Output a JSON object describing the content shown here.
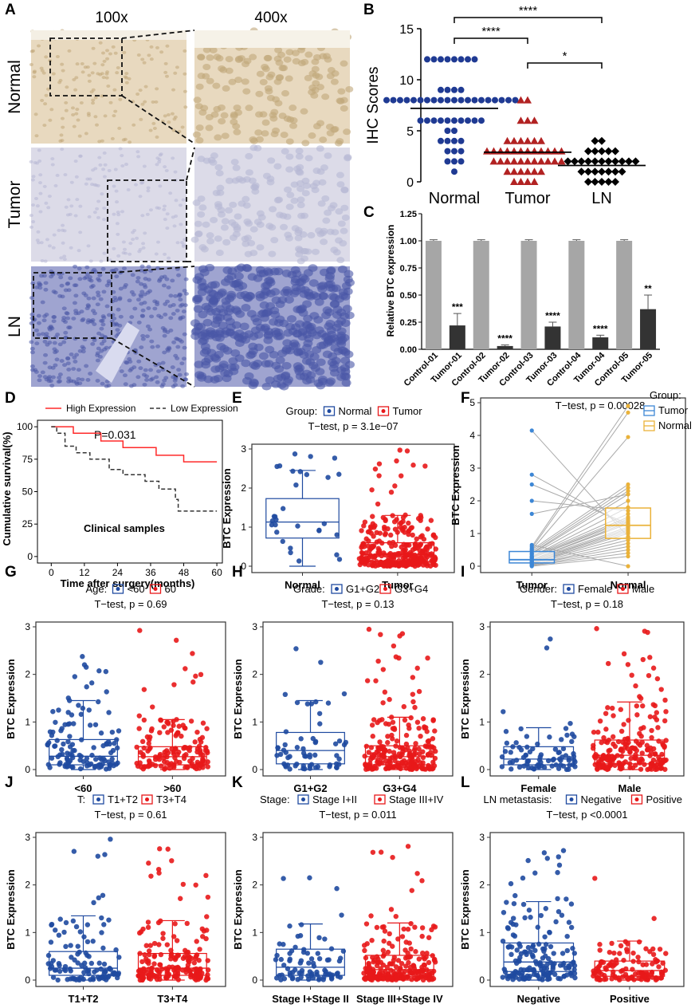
{
  "panel_letters": [
    "A",
    "B",
    "C",
    "D",
    "E",
    "F",
    "G",
    "H",
    "I",
    "J",
    "K",
    "L"
  ],
  "panelA": {
    "col_headers": [
      "100x",
      "400x"
    ],
    "rows": [
      {
        "label": "Normal",
        "fill": "#e8d9bf",
        "dark": "#c0a679"
      },
      {
        "label": "Tumor",
        "fill": "#dcdbe8",
        "dark": "#b6b7d3"
      },
      {
        "label": "LN",
        "fill": "#9fa4d0",
        "dark": "#4a57a6"
      }
    ]
  },
  "chart_data": [
    {
      "id": "B",
      "type": "scatter",
      "ylabel": "IHC Scores",
      "ylim": [
        0,
        15
      ],
      "yticks": [
        0,
        5,
        10,
        15
      ],
      "categories": [
        "Normal",
        "Tumor",
        "LN"
      ],
      "colors": [
        "#1f3a93",
        "#b22222",
        "#000000"
      ],
      "markers": [
        "circle",
        "triangle",
        "diamond"
      ],
      "points": [
        [
          12,
          12,
          12,
          12,
          12,
          12,
          12,
          12,
          9,
          9,
          9,
          9,
          8,
          8,
          8,
          8,
          8,
          8,
          8,
          8,
          8,
          8,
          8,
          8,
          8,
          8,
          8,
          8,
          8,
          8,
          8,
          8,
          6,
          6,
          6,
          6,
          6,
          6,
          6,
          6,
          6,
          6,
          5,
          5,
          4,
          4,
          4,
          4,
          3,
          3,
          3,
          2,
          2,
          2,
          1
        ],
        [
          8,
          8,
          6,
          6,
          6,
          4,
          4,
          4,
          4,
          4,
          4,
          3,
          3,
          3,
          3,
          3,
          3,
          3,
          3,
          3,
          3,
          3,
          3,
          2,
          2,
          2,
          2,
          2,
          2,
          2,
          2,
          2,
          2,
          2,
          1,
          1,
          1,
          1,
          1,
          1,
          0,
          0,
          0,
          0
        ],
        [
          4,
          4,
          3,
          3,
          3,
          3,
          3,
          2,
          2,
          2,
          2,
          2,
          2,
          2,
          2,
          2,
          2,
          2,
          1,
          1,
          1,
          1,
          1,
          1,
          1,
          0,
          0,
          0,
          0,
          0
        ]
      ],
      "means": [
        7.2,
        2.9,
        1.6
      ],
      "comparisons": [
        {
          "from": "Normal",
          "to": "Tumor",
          "label": "****"
        },
        {
          "from": "Normal",
          "to": "LN",
          "label": "****"
        },
        {
          "from": "Tumor",
          "to": "LN",
          "label": "*"
        }
      ]
    },
    {
      "id": "C",
      "type": "bar",
      "ylabel": "Relative BTC expression",
      "ylim": [
        0,
        1.25
      ],
      "yticks": [
        "0.00",
        "0.25",
        "0.50",
        "0.75",
        "1.00",
        "1.25"
      ],
      "categories": [
        "Control-01",
        "Tumor-01",
        "Control-02",
        "Tumor-02",
        "Control-03",
        "Tumor-03",
        "Control-04",
        "Tumor-04",
        "Control-05",
        "Tumor-05"
      ],
      "values": [
        1.0,
        0.22,
        1.0,
        0.03,
        1.0,
        0.21,
        1.0,
        0.11,
        1.0,
        0.37
      ],
      "errors": [
        0.01,
        0.11,
        0.01,
        0.01,
        0.01,
        0.04,
        0.01,
        0.02,
        0.01,
        0.13
      ],
      "significance": [
        "",
        "***",
        "",
        "****",
        "",
        "****",
        "",
        "****",
        "",
        "**"
      ],
      "colors": {
        "control": "#a6a6a6",
        "tumor": "#333333"
      }
    },
    {
      "id": "D",
      "type": "line",
      "title": "",
      "xlabel": "Time after surgery(months)",
      "ylabel": "Cumulative survival(%)",
      "xlim": [
        -5,
        62
      ],
      "ylim": [
        -5,
        105
      ],
      "xticks": [
        0,
        12,
        24,
        36,
        48,
        60
      ],
      "yticks": [
        0,
        25,
        50,
        75,
        100
      ],
      "annotation": "P=0.031",
      "note": "Clinical samples",
      "series": [
        {
          "name": "High Expression",
          "color": "#ff2a2a",
          "dash": "",
          "steps": [
            [
              0,
              100
            ],
            [
              8,
              100
            ],
            [
              8,
              95
            ],
            [
              18,
              95
            ],
            [
              18,
              89
            ],
            [
              26,
              89
            ],
            [
              26,
              84
            ],
            [
              38,
              84
            ],
            [
              38,
              78
            ],
            [
              48,
              78
            ],
            [
              48,
              73
            ],
            [
              60,
              73
            ]
          ]
        },
        {
          "name": "Low Expression",
          "color": "#333333",
          "dash": "5,3",
          "steps": [
            [
              0,
              100
            ],
            [
              2,
              100
            ],
            [
              2,
              95
            ],
            [
              5,
              95
            ],
            [
              5,
              85
            ],
            [
              9,
              85
            ],
            [
              9,
              80
            ],
            [
              14,
              80
            ],
            [
              14,
              75
            ],
            [
              21,
              75
            ],
            [
              21,
              67
            ],
            [
              26,
              67
            ],
            [
              26,
              63
            ],
            [
              34,
              63
            ],
            [
              34,
              58
            ],
            [
              39,
              58
            ],
            [
              39,
              52
            ],
            [
              45,
              52
            ],
            [
              45,
              44
            ],
            [
              46,
              44
            ],
            [
              46,
              35
            ],
            [
              60,
              35
            ]
          ]
        }
      ]
    },
    {
      "id": "E",
      "type": "boxplot",
      "legend_title": "Group:",
      "legend": [
        "Normal",
        "Tumor"
      ],
      "ttest": "T−test, p = 3.1e−07",
      "ylabel": "BTC Expression",
      "ylim": [
        0,
        3
      ],
      "yticks": [
        0,
        1,
        2,
        3
      ],
      "categories": [
        "Normal",
        "Tumor"
      ],
      "colors": [
        "#1f4aa0",
        "#e8181a"
      ],
      "boxes": [
        {
          "q1": 0.72,
          "median": 1.13,
          "q3": 1.73,
          "wlo": 0.0,
          "whi": 2.45
        },
        {
          "q1": 0.12,
          "median": 0.3,
          "q3": 0.6,
          "wlo": 0.0,
          "whi": 1.3
        }
      ],
      "n": [
        30,
        300
      ],
      "seed": [
        11,
        12
      ]
    },
    {
      "id": "F",
      "type": "paired",
      "legend_title": "Group:",
      "legend": [
        "Tumor",
        "Normal"
      ],
      "ttest": "T−test, p = 0.00028",
      "ylabel": "BTC Expression",
      "ylim": [
        0,
        5
      ],
      "yticks": [
        0,
        1,
        2,
        3,
        4,
        5
      ],
      "categories": [
        "Tumor",
        "Normal"
      ],
      "colors": [
        "#3d87d6",
        "#eab23a"
      ],
      "boxes": [
        {
          "q1": 0.1,
          "median": 0.2,
          "q3": 0.45,
          "wlo": 0.0,
          "whi": 0.7
        },
        {
          "q1": 0.85,
          "median": 1.25,
          "q3": 1.78,
          "wlo": 0.4,
          "whi": 2.4
        }
      ],
      "pairs": [
        [
          4.15,
          0.9
        ],
        [
          2.8,
          1.2
        ],
        [
          2.5,
          1.3
        ],
        [
          2.0,
          1.7
        ],
        [
          1.6,
          2.2
        ],
        [
          0.65,
          0.0
        ],
        [
          0.6,
          4.9
        ],
        [
          0.55,
          4.7
        ],
        [
          0.5,
          3.95
        ],
        [
          0.5,
          2.5
        ],
        [
          0.45,
          2.4
        ],
        [
          0.4,
          2.3
        ],
        [
          0.38,
          2.2
        ],
        [
          0.35,
          2.0
        ],
        [
          0.3,
          1.8
        ],
        [
          0.3,
          1.6
        ],
        [
          0.28,
          1.5
        ],
        [
          0.25,
          1.45
        ],
        [
          0.25,
          1.4
        ],
        [
          0.2,
          1.35
        ],
        [
          0.2,
          1.3
        ],
        [
          0.18,
          1.2
        ],
        [
          0.15,
          1.15
        ],
        [
          0.15,
          1.1
        ],
        [
          0.12,
          1.05
        ],
        [
          0.1,
          1.0
        ],
        [
          0.1,
          0.9
        ],
        [
          0.08,
          0.8
        ],
        [
          0.05,
          0.7
        ],
        [
          0.05,
          0.6
        ],
        [
          0.03,
          0.5
        ],
        [
          0.02,
          0.4
        ],
        [
          0.0,
          0.3
        ]
      ]
    },
    {
      "id": "G",
      "type": "boxplot",
      "legend_title": "Age:",
      "legend": [
        "<60",
        "60"
      ],
      "ttest": "T−test, p = 0.69",
      "ylabel": "BTC Expression",
      "ylim": [
        0,
        3
      ],
      "yticks": [
        0,
        1,
        2,
        3
      ],
      "categories": [
        "<60",
        ">60"
      ],
      "colors": [
        "#1f4aa0",
        "#e8181a"
      ],
      "boxes": [
        {
          "q1": 0.1,
          "median": 0.28,
          "q3": 0.63,
          "wlo": 0.0,
          "whi": 1.45
        },
        {
          "q1": 0.1,
          "median": 0.27,
          "q3": 0.48,
          "wlo": 0.0,
          "whi": 1.05
        }
      ],
      "n": [
        120,
        150
      ],
      "seed": [
        21,
        22
      ]
    },
    {
      "id": "H",
      "type": "boxplot",
      "legend_title": "Grade:",
      "legend": [
        "G1+G2",
        "G3+G4"
      ],
      "ttest": "T−test, p = 0.13",
      "ylabel": "BTC Expression",
      "ylim": [
        0,
        3
      ],
      "yticks": [
        0,
        1,
        2,
        3
      ],
      "categories": [
        "G1+G2",
        "G3+G4"
      ],
      "colors": [
        "#1f4aa0",
        "#e8181a"
      ],
      "boxes": [
        {
          "q1": 0.12,
          "median": 0.4,
          "q3": 0.78,
          "wlo": 0.0,
          "whi": 1.45
        },
        {
          "q1": 0.1,
          "median": 0.27,
          "q3": 0.5,
          "wlo": 0.0,
          "whi": 1.1
        }
      ],
      "n": [
        60,
        220
      ],
      "seed": [
        31,
        32
      ]
    },
    {
      "id": "I",
      "type": "boxplot",
      "legend_title": "Gender:",
      "legend": [
        "Female",
        "Male"
      ],
      "ttest": "T−test, p = 0.18",
      "ylabel": "BTC Expression",
      "ylim": [
        0,
        3
      ],
      "yticks": [
        0,
        1,
        2,
        3
      ],
      "categories": [
        "Female",
        "Male"
      ],
      "colors": [
        "#1f4aa0",
        "#e8181a"
      ],
      "boxes": [
        {
          "q1": 0.1,
          "median": 0.22,
          "q3": 0.48,
          "wlo": 0.0,
          "whi": 0.88
        },
        {
          "q1": 0.12,
          "median": 0.3,
          "q3": 0.62,
          "wlo": 0.0,
          "whi": 1.42
        }
      ],
      "n": [
        80,
        200
      ],
      "seed": [
        41,
        42
      ]
    },
    {
      "id": "J",
      "type": "boxplot",
      "legend_title": "T:",
      "legend": [
        "T1+T2",
        "T3+T4"
      ],
      "ttest": "T−test, p = 0.61",
      "ylabel": "BTC Expression",
      "ylim": [
        0,
        3
      ],
      "yticks": [
        0,
        1,
        2,
        3
      ],
      "categories": [
        "T1+T2",
        "T3+T4"
      ],
      "colors": [
        "#1f4aa0",
        "#e8181a"
      ],
      "boxes": [
        {
          "q1": 0.1,
          "median": 0.25,
          "q3": 0.6,
          "wlo": 0.0,
          "whi": 1.35
        },
        {
          "q1": 0.1,
          "median": 0.25,
          "q3": 0.56,
          "wlo": 0.0,
          "whi": 1.25
        }
      ],
      "n": [
        110,
        180
      ],
      "seed": [
        51,
        52
      ]
    },
    {
      "id": "K",
      "type": "boxplot",
      "legend_title": "Stage:",
      "legend": [
        "Stage I+II",
        "Stage III+IV"
      ],
      "ttest": "T−test, p = 0.011",
      "ylabel": "BTC Expression",
      "ylim": [
        0,
        3
      ],
      "yticks": [
        0,
        1,
        2,
        3
      ],
      "categories": [
        "Stage I+Stage II",
        "Stage III+Stage IV"
      ],
      "colors": [
        "#1f4aa0",
        "#e8181a"
      ],
      "boxes": [
        {
          "q1": 0.1,
          "median": 0.27,
          "q3": 0.65,
          "wlo": 0.0,
          "whi": 1.18
        },
        {
          "q1": 0.08,
          "median": 0.22,
          "q3": 0.52,
          "wlo": 0.0,
          "whi": 1.2
        }
      ],
      "n": [
        80,
        220
      ],
      "seed": [
        61,
        62
      ]
    },
    {
      "id": "L",
      "type": "boxplot",
      "legend_title": "LN metastasis:",
      "legend": [
        "Negative",
        "Positive"
      ],
      "ttest": "T−test, p <0.0001",
      "ylabel": "BTC Expression",
      "ylim": [
        0,
        3
      ],
      "yticks": [
        0,
        1,
        2,
        3
      ],
      "categories": [
        "Negative",
        "Positive"
      ],
      "colors": [
        "#1f4aa0",
        "#e8181a"
      ],
      "boxes": [
        {
          "q1": 0.18,
          "median": 0.38,
          "q3": 0.78,
          "wlo": 0.0,
          "whi": 1.65
        },
        {
          "q1": 0.08,
          "median": 0.2,
          "q3": 0.4,
          "wlo": 0.0,
          "whi": 0.82
        }
      ],
      "n": [
        170,
        120
      ],
      "seed": [
        71,
        72
      ]
    }
  ]
}
